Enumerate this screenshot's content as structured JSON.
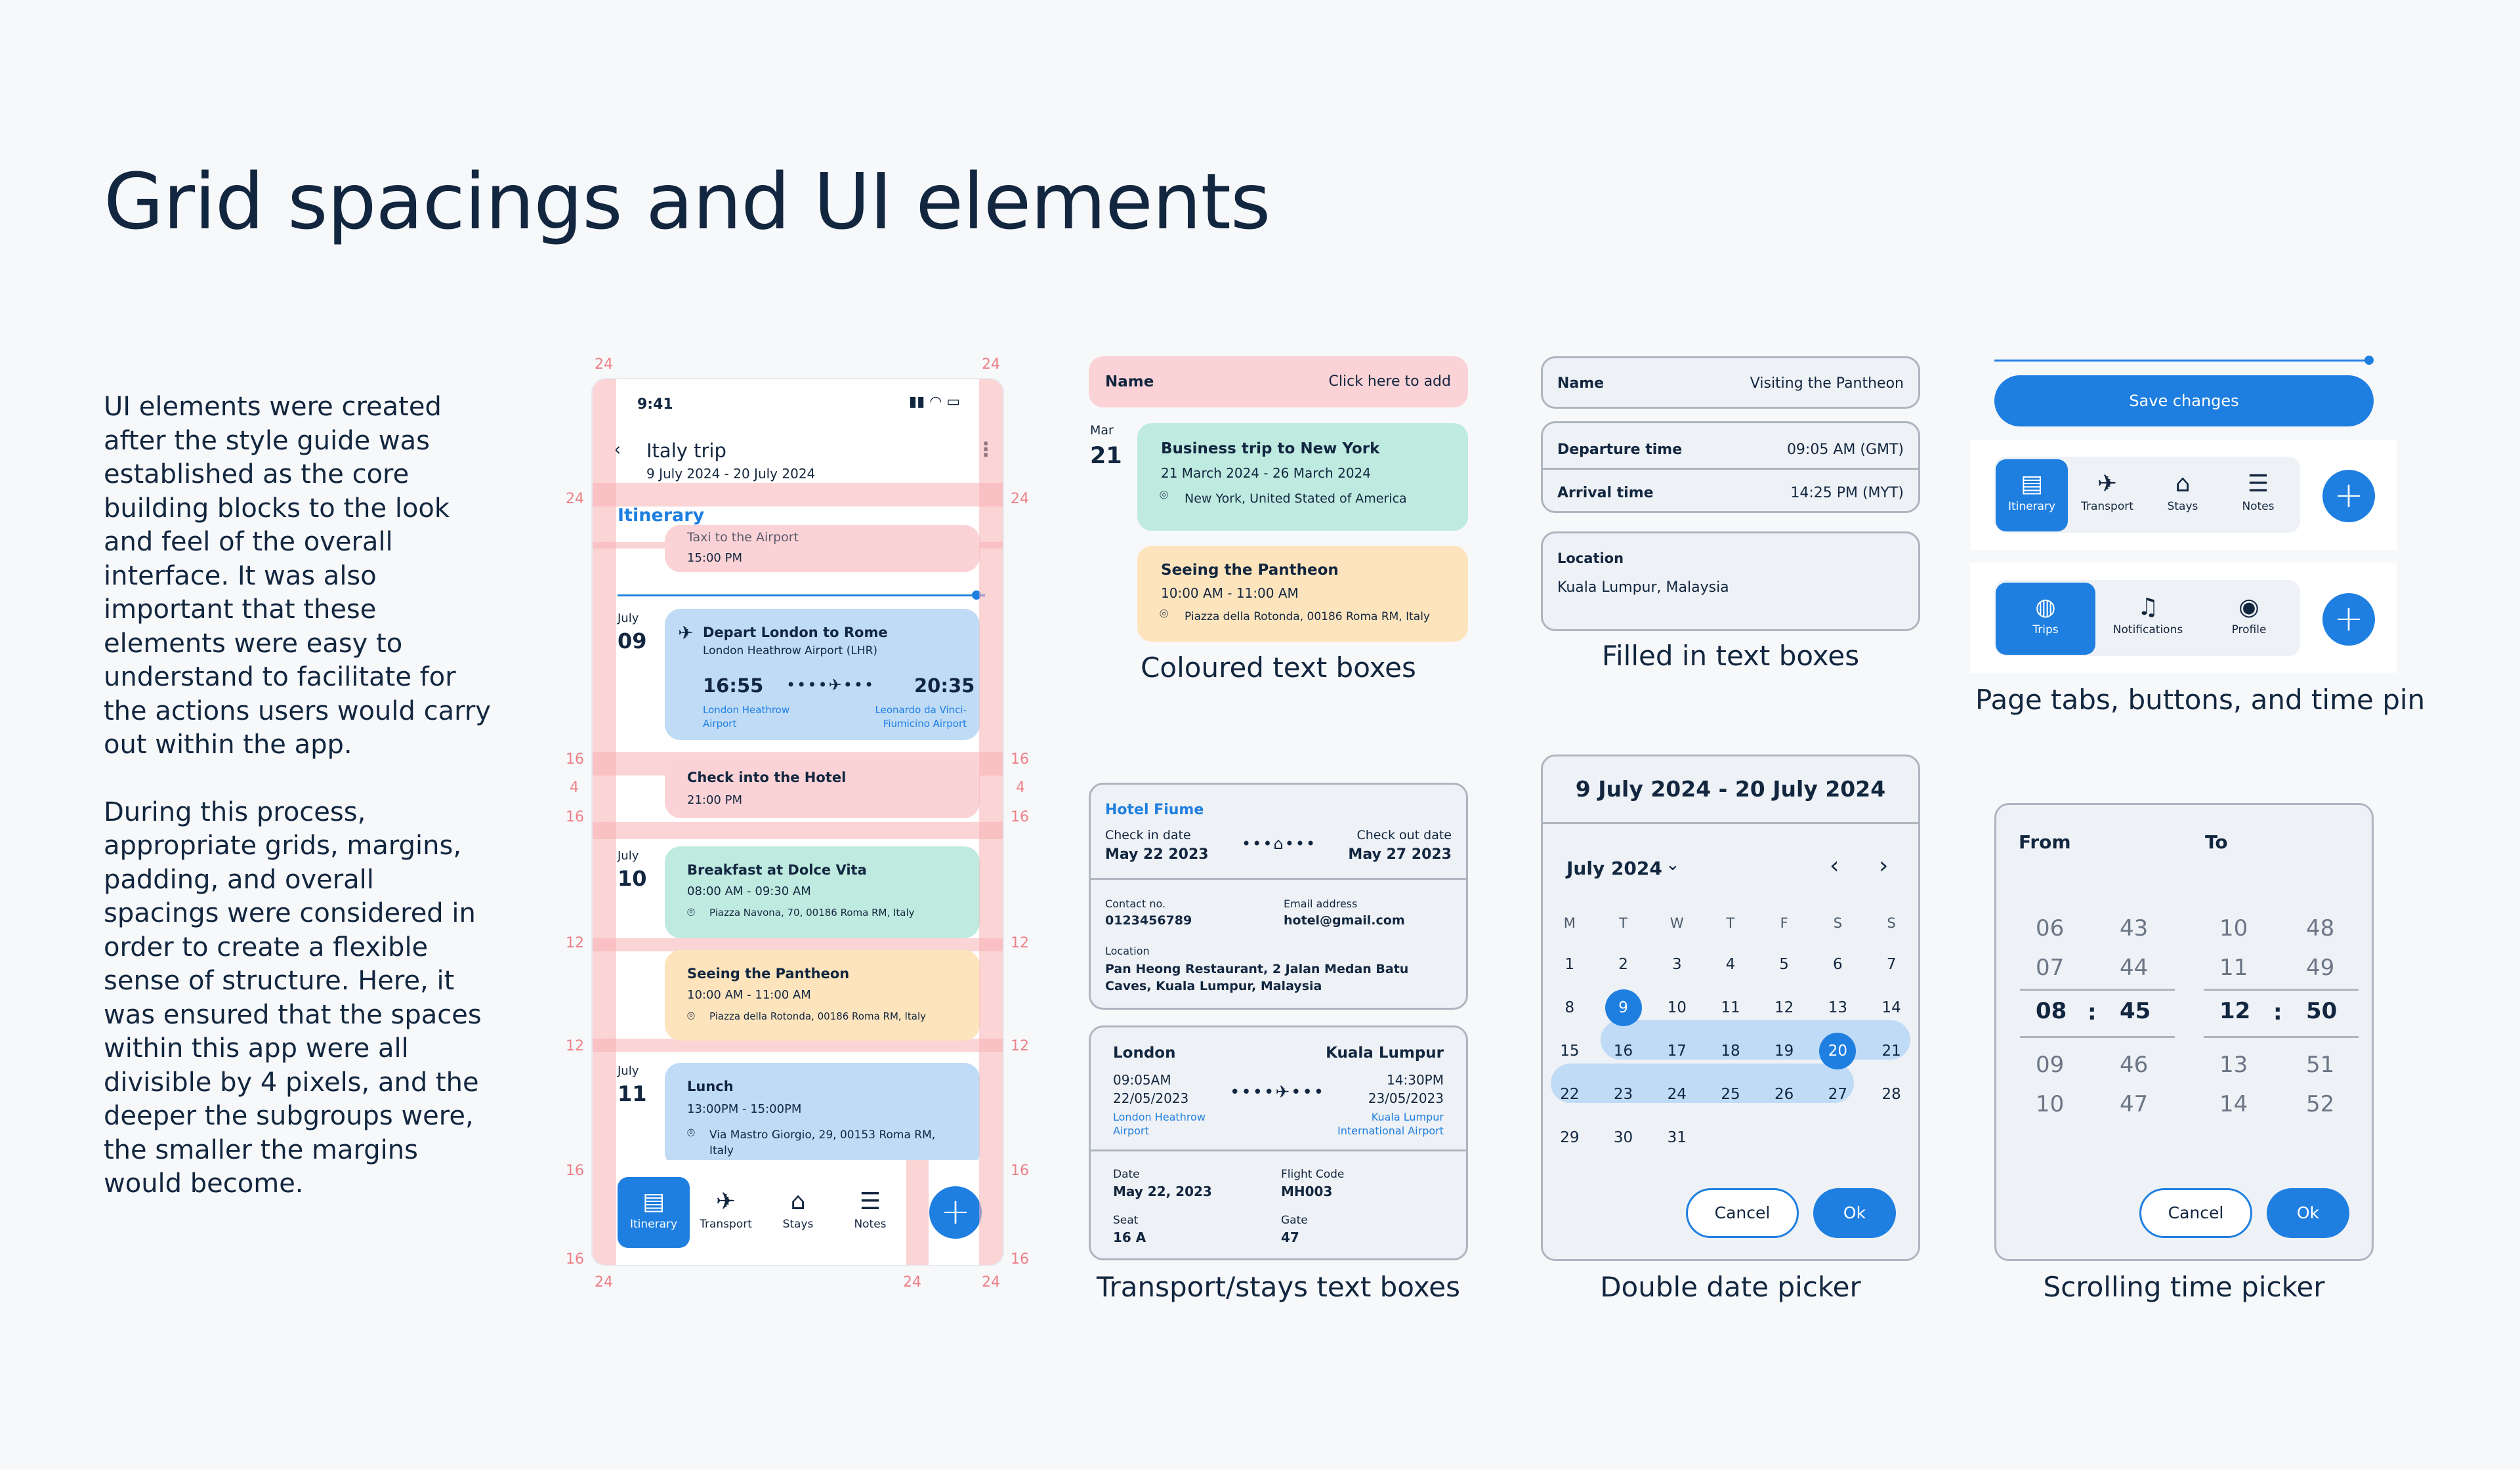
{
  "page": {
    "title": "Grid spacings and UI elements",
    "intro_p1": "UI elements were created after the style guide was established as the core building blocks to the look and feel of the overall interface. It was also important that these elements were easy to understand to facilitate for the actions users would carry out within the app.",
    "intro_p2": "During this process, appropriate grids, margins, padding, and overall spacings were considered in order to create a flexible sense of structure. Here, it was ensured that the spaces within this app were all divisible by 4 pixels, and the deeper the subgroups were, the smaller the margins would become."
  },
  "grid_labels": {
    "m24": "24",
    "m16": "16",
    "m12": "12",
    "m4": "4"
  },
  "phone": {
    "time": "9:41",
    "trip_title": "Italy trip",
    "trip_dates": "9 July 2024 - 20 July 2024",
    "section": "Itinerary",
    "events": {
      "taxi_title": "Taxi to the Airport",
      "taxi_time": "15:00 PM",
      "day1_month": "July",
      "day1_num": "09",
      "flight_title": "Depart London to Rome",
      "flight_sub": "London Heathrow Airport (LHR)",
      "dep_time": "16:55",
      "arr_time": "20:35",
      "dep_airport": "London Heathrow Airport",
      "arr_airport": "Leonardo da Vinci-Fiumicino Airport",
      "hotel_title": "Check into the Hotel",
      "hotel_time": "21:00 PM",
      "day2_month": "July",
      "day2_num": "10",
      "breakfast_title": "Breakfast at Dolce Vita",
      "breakfast_time": "08:00 AM - 09:30 AM",
      "breakfast_loc": "Piazza Navona, 70, 00186 Roma RM, Italy",
      "pantheon_title": "Seeing the Pantheon",
      "pantheon_time": "10:00 AM - 11:00 AM",
      "pantheon_loc": "Piazza della Rotonda, 00186 Roma RM, Italy",
      "day3_month": "July",
      "day3_num": "11",
      "lunch_title": "Lunch",
      "lunch_time": "13:00PM - 15:00PM",
      "lunch_loc": "Via Mastro Giorgio, 29, 00153 Roma RM, Italy"
    },
    "nav": [
      "Itinerary",
      "Transport",
      "Stays",
      "Notes"
    ],
    "fab": "+"
  },
  "coloured": {
    "name_label": "Name",
    "name_action": "Click here to add",
    "month": "Mar",
    "day": "21",
    "trip_title": "Business trip to New York",
    "trip_dates": "21 March 2024 - 26 March 2024",
    "trip_loc": "New York, United Stated of America",
    "pantheon_title": "Seeing the Pantheon",
    "pantheon_time": "10:00 AM - 11:00 AM",
    "pantheon_loc": "Piazza della Rotonda, 00186 Roma RM, Italy",
    "caption": "Coloured text boxes"
  },
  "filled": {
    "name_label": "Name",
    "name_value": "Visiting the Pantheon",
    "dep_label": "Departure time",
    "dep_value": "09:05 AM (GMT)",
    "arr_label": "Arrival time",
    "arr_value": "14:25 PM (MYT)",
    "loc_label": "Location",
    "loc_value": "Kuala Lumpur, Malaysia",
    "caption": "Filled in text boxes"
  },
  "tabs": {
    "save": "Save changes",
    "nav1": [
      "Itinerary",
      "Transport",
      "Stays",
      "Notes"
    ],
    "nav2": [
      "Trips",
      "Notifications",
      "Profile"
    ],
    "fab": "+",
    "caption": "Page tabs, buttons, and time pin"
  },
  "stays": {
    "hotel": "Hotel Fiume",
    "checkin_label": "Check in date",
    "checkin_value": "May 22 2023",
    "checkout_label": "Check out date",
    "checkout_value": "May 27 2023",
    "contact_label": "Contact no.",
    "contact_value": "0123456789",
    "email_label": "Email address",
    "email_value": "hotel@gmail.com",
    "loc_label": "Location",
    "loc_value": "Pan Heong Restaurant, 2 Jalan Medan Batu Caves, Kuala Lumpur, Malaysia"
  },
  "transport": {
    "from_city": "London",
    "to_city": "Kuala Lumpur",
    "dep_time": "09:05AM",
    "arr_time": "14:30PM",
    "dep_date": "22/05/2023",
    "arr_date": "23/05/2023",
    "from_airport": "London Heathrow Airport",
    "to_airport": "Kuala Lumpur International Airport",
    "date_label": "Date",
    "date_value": "May 22, 2023",
    "code_label": "Flight Code",
    "code_value": "MH003",
    "seat_label": "Seat",
    "seat_value": "16 A",
    "gate_label": "Gate",
    "gate_value": "47",
    "caption": "Transport/stays text boxes"
  },
  "datepicker": {
    "range": "9 July 2024 - 20 July 2024",
    "month": "July 2024",
    "weekdays": [
      "M",
      "T",
      "W",
      "T",
      "F",
      "S",
      "S"
    ],
    "weeks": [
      [
        "1",
        "2",
        "3",
        "4",
        "5",
        "6",
        "7"
      ],
      [
        "8",
        "9",
        "10",
        "11",
        "12",
        "13",
        "14"
      ],
      [
        "15",
        "16",
        "17",
        "18",
        "19",
        "20",
        "21"
      ],
      [
        "22",
        "23",
        "24",
        "25",
        "26",
        "27",
        "28"
      ],
      [
        "29",
        "30",
        "31",
        "",
        "",
        "",
        ""
      ]
    ],
    "cancel": "Cancel",
    "ok": "Ok",
    "caption": "Double date picker"
  },
  "timepicker": {
    "from": "From",
    "to": "To",
    "from_hours": [
      "06",
      "07",
      "08",
      "09",
      "10"
    ],
    "from_mins": [
      "43",
      "44",
      "45",
      "46",
      "47"
    ],
    "to_hours": [
      "10",
      "11",
      "12",
      "13",
      "14"
    ],
    "to_mins": [
      "48",
      "49",
      "50",
      "51",
      "52"
    ],
    "sep": ":",
    "cancel": "Cancel",
    "ok": "Ok",
    "caption": "Scrolling time picker"
  },
  "colors": {
    "accent": "#1f7fe0",
    "pink": "#fbd3d6",
    "lightblue": "#bfdbf6",
    "mint": "#bfeae0",
    "peach": "#fde4bd",
    "grid": "#f7b1b5"
  }
}
